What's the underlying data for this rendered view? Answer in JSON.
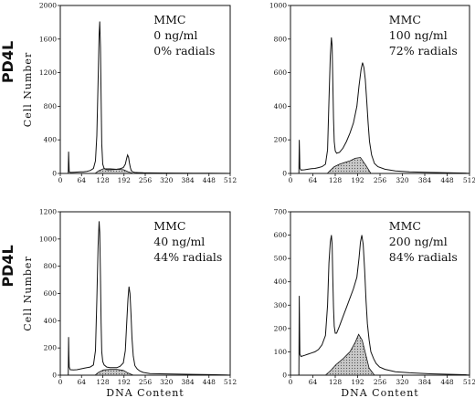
{
  "chart_data": [
    {
      "type": "area",
      "row_label": "PD4L",
      "annotation": [
        "MMC",
        "0 ng/ml",
        "0% radials"
      ],
      "xlabel": "",
      "ylabel": "Cell Number",
      "xlim": [
        0,
        512
      ],
      "ylim": [
        0,
        2000
      ],
      "xticks": [
        0,
        64,
        128,
        192,
        256,
        320,
        384,
        448,
        512
      ],
      "xtick_labels": [
        "0",
        "64",
        "128",
        "192",
        "256",
        "320",
        "384",
        "448",
        "512"
      ],
      "yticks": [
        0,
        400,
        800,
        1200,
        1600,
        2000
      ],
      "ytick_labels": [
        "0",
        "400",
        "800",
        "1200",
        "1600",
        "2000"
      ],
      "series": [
        {
          "x": [
            24,
            25,
            26,
            27,
            30,
            40,
            50,
            60,
            70,
            80,
            90,
            100,
            106,
            110,
            114,
            117,
            119,
            121,
            123,
            125,
            128,
            132,
            140,
            150,
            160,
            170,
            180,
            190,
            196,
            200,
            203,
            206,
            208,
            211,
            214,
            218,
            224,
            235,
            250,
            270,
            300,
            340,
            400,
            450,
            500,
            512
          ],
          "values": [
            0,
            260,
            150,
            20,
            12,
            14,
            16,
            18,
            20,
            25,
            35,
            60,
            150,
            450,
            1100,
            1650,
            1810,
            1500,
            900,
            350,
            110,
            60,
            45,
            45,
            48,
            50,
            55,
            70,
            110,
            180,
            220,
            190,
            130,
            70,
            35,
            20,
            12,
            10,
            8,
            6,
            5,
            4,
            3,
            2,
            1,
            0
          ]
        },
        {
          "x": [
            105,
            115,
            130,
            150,
            170,
            190,
            205,
            220
          ],
          "values": [
            0,
            30,
            55,
            55,
            50,
            45,
            20,
            0
          ]
        }
      ]
    },
    {
      "type": "area",
      "row_label": "",
      "annotation": [
        "MMC",
        "100 ng/ml",
        "72% radials"
      ],
      "xlabel": "",
      "ylabel": "",
      "xlim": [
        0,
        512
      ],
      "ylim": [
        0,
        1000
      ],
      "xticks": [
        0,
        64,
        128,
        192,
        256,
        320,
        384,
        448,
        512
      ],
      "xtick_labels": [
        "0",
        "64",
        "128",
        "192",
        "256",
        "320",
        "384",
        "448",
        "512"
      ],
      "yticks": [
        0,
        200,
        400,
        600,
        800,
        1000
      ],
      "ytick_labels": [
        "0",
        "200",
        "400",
        "600",
        "800",
        "1000"
      ],
      "series": [
        {
          "x": [
            24,
            25,
            26,
            27,
            30,
            40,
            50,
            60,
            70,
            80,
            90,
            100,
            106,
            110,
            114,
            117,
            119,
            121,
            123,
            125,
            128,
            132,
            140,
            150,
            160,
            170,
            180,
            190,
            196,
            202,
            206,
            210,
            214,
            218,
            222,
            226,
            232,
            240,
            250,
            270,
            300,
            340,
            400,
            450,
            500,
            512
          ],
          "values": [
            0,
            200,
            110,
            30,
            20,
            22,
            25,
            28,
            30,
            35,
            40,
            55,
            140,
            430,
            700,
            810,
            760,
            560,
            330,
            190,
            135,
            120,
            125,
            150,
            190,
            240,
            300,
            400,
            520,
            620,
            660,
            630,
            560,
            430,
            300,
            190,
            110,
            60,
            40,
            25,
            15,
            10,
            6,
            4,
            2,
            0
          ]
        },
        {
          "x": [
            105,
            115,
            125,
            140,
            155,
            170,
            185,
            200,
            215,
            230
          ],
          "values": [
            0,
            20,
            40,
            55,
            65,
            75,
            90,
            95,
            50,
            0
          ]
        }
      ]
    },
    {
      "type": "area",
      "row_label": "PD4L",
      "annotation": [
        "MMC",
        "40 ng/ml",
        "44% radials"
      ],
      "xlabel": "DNA Content",
      "ylabel": "Cell Number",
      "xlim": [
        0,
        512
      ],
      "ylim": [
        0,
        1200
      ],
      "xticks": [
        0,
        64,
        128,
        192,
        256,
        320,
        384,
        448,
        512
      ],
      "xtick_labels": [
        "0",
        "64",
        "128",
        "192",
        "256",
        "320",
        "384",
        "448",
        "512"
      ],
      "yticks": [
        0,
        200,
        400,
        600,
        800,
        1000,
        1200
      ],
      "ytick_labels": [
        "0",
        "200",
        "400",
        "600",
        "800",
        "1000",
        "1200"
      ],
      "series": [
        {
          "x": [
            24,
            25,
            26,
            27,
            30,
            40,
            50,
            60,
            70,
            80,
            90,
            100,
            106,
            110,
            114,
            117,
            119,
            121,
            123,
            125,
            128,
            132,
            140,
            150,
            160,
            170,
            180,
            190,
            196,
            200,
            204,
            207,
            210,
            213,
            216,
            220,
            225,
            232,
            240,
            250,
            270,
            300,
            340,
            400,
            450,
            500,
            512
          ],
          "values": [
            0,
            280,
            150,
            60,
            40,
            38,
            40,
            45,
            50,
            55,
            60,
            75,
            180,
            550,
            950,
            1130,
            1050,
            720,
            380,
            170,
            100,
            75,
            60,
            55,
            55,
            55,
            65,
            90,
            180,
            380,
            560,
            650,
            600,
            450,
            270,
            140,
            70,
            45,
            30,
            20,
            12,
            10,
            8,
            6,
            4,
            2,
            0
          ]
        },
        {
          "x": [
            105,
            115,
            130,
            150,
            170,
            190,
            205,
            220
          ],
          "values": [
            0,
            20,
            38,
            42,
            42,
            35,
            15,
            0
          ]
        }
      ]
    },
    {
      "type": "area",
      "row_label": "",
      "annotation": [
        "MMC",
        "200 ng/ml",
        "84% radials"
      ],
      "xlabel": "DNA Content",
      "ylabel": "",
      "xlim": [
        0,
        512
      ],
      "ylim": [
        0,
        700
      ],
      "xticks": [
        0,
        64,
        128,
        192,
        256,
        320,
        384,
        448,
        512
      ],
      "xtick_labels": [
        "0",
        "64",
        "128",
        "192",
        "256",
        "320",
        "384",
        "448",
        "512"
      ],
      "yticks": [
        0,
        100,
        200,
        300,
        400,
        500,
        600,
        700
      ],
      "ytick_labels": [
        "0",
        "100",
        "200",
        "300",
        "400",
        "500",
        "600",
        "700"
      ],
      "series": [
        {
          "x": [
            24,
            25,
            26,
            27,
            30,
            40,
            50,
            60,
            70,
            80,
            90,
            100,
            106,
            110,
            114,
            117,
            119,
            121,
            123,
            125,
            128,
            132,
            140,
            150,
            160,
            170,
            180,
            190,
            196,
            200,
            204,
            208,
            212,
            216,
            220,
            225,
            230,
            238,
            245,
            255,
            270,
            300,
            340,
            400,
            450,
            500,
            512
          ],
          "values": [
            0,
            340,
            190,
            90,
            80,
            85,
            90,
            95,
            100,
            110,
            130,
            170,
            300,
            480,
            570,
            600,
            560,
            420,
            290,
            210,
            180,
            180,
            210,
            250,
            290,
            330,
            370,
            420,
            500,
            570,
            600,
            560,
            450,
            320,
            220,
            150,
            100,
            70,
            50,
            35,
            25,
            15,
            10,
            6,
            4,
            2,
            0
          ]
        },
        {
          "x": [
            100,
            115,
            130,
            150,
            170,
            185,
            195,
            205,
            215,
            225,
            240
          ],
          "values": [
            0,
            20,
            45,
            70,
            100,
            140,
            175,
            150,
            90,
            30,
            0
          ]
        }
      ]
    }
  ]
}
